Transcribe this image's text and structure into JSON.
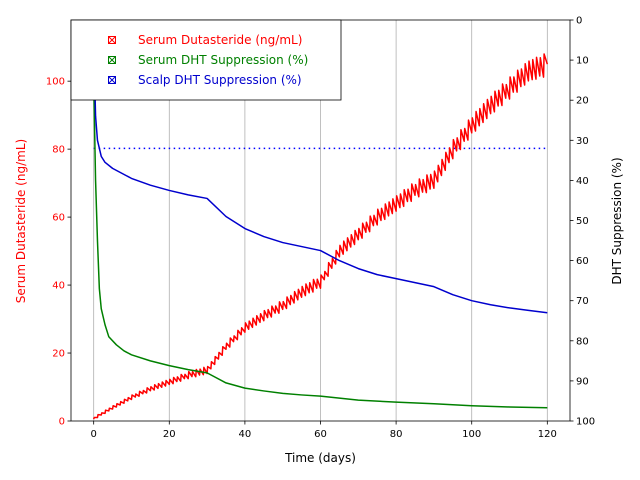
{
  "chart_data": {
    "type": "line",
    "xlabel": "Time (days)",
    "ylabel_left": "Serum Dutasteride (ng/mL)",
    "ylabel_right": "DHT Suppression (%)",
    "xlim": [
      -6,
      126
    ],
    "ylim_left": [
      0,
      118
    ],
    "ylim_right": [
      100,
      0
    ],
    "right_axis_inverted": true,
    "x_grid": true,
    "y_grid": false,
    "legend_position": "upper-left",
    "x_ticks": [
      {
        "value": 0,
        "label": "0"
      },
      {
        "value": 20,
        "label": "20"
      },
      {
        "value": 40,
        "label": "40"
      },
      {
        "value": 60,
        "label": "60"
      },
      {
        "value": 80,
        "label": "80"
      },
      {
        "value": 100,
        "label": "100"
      },
      {
        "value": 120,
        "label": "120"
      }
    ],
    "left_ticks": [
      {
        "value": 0,
        "label": "0"
      },
      {
        "value": 20,
        "label": "20"
      },
      {
        "value": 40,
        "label": "40"
      },
      {
        "value": 60,
        "label": "60"
      },
      {
        "value": 80,
        "label": "80"
      },
      {
        "value": 100,
        "label": "100"
      }
    ],
    "right_ticks": [
      {
        "value": 0,
        "label": "0"
      },
      {
        "value": 10,
        "label": "10"
      },
      {
        "value": 20,
        "label": "20"
      },
      {
        "value": 30,
        "label": "30"
      },
      {
        "value": 40,
        "label": "40"
      },
      {
        "value": 50,
        "label": "50"
      },
      {
        "value": 60,
        "label": "60"
      },
      {
        "value": 70,
        "label": "70"
      },
      {
        "value": 80,
        "label": "80"
      },
      {
        "value": 90,
        "label": "90"
      },
      {
        "value": 100,
        "label": "100"
      }
    ],
    "threshold": {
      "axis": "right",
      "value": 32,
      "x_range": [
        0,
        120
      ],
      "style": "dotted",
      "color": "#0000ff"
    },
    "series": [
      {
        "name": "Serum Dutasteride (ng/mL)",
        "axis": "left",
        "color": "#ff0000",
        "dosing_interval_days": 1,
        "sawtooth_amplitude": [
          0.8,
          7
        ],
        "x": [
          0,
          5,
          10,
          15,
          20,
          25,
          30,
          35,
          40,
          45,
          50,
          55,
          60,
          65,
          70,
          75,
          80,
          85,
          90,
          95,
          100,
          105,
          110,
          115,
          120
        ],
        "y": [
          0.8,
          4,
          7,
          9.5,
          11.5,
          13.5,
          15,
          22,
          27.5,
          31,
          34,
          38,
          41,
          50,
          55,
          60,
          64,
          68,
          71,
          80,
          87,
          93,
          98,
          103,
          105
        ]
      },
      {
        "name": "Serum DHT Suppression (%)",
        "axis": "right",
        "color": "#008000",
        "x": [
          0,
          0.5,
          1,
          1.5,
          2,
          3,
          4,
          6,
          8,
          10,
          15,
          20,
          25,
          30,
          35,
          40,
          45,
          50,
          55,
          60,
          70,
          80,
          90,
          100,
          110,
          120
        ],
        "y": [
          15,
          40,
          55,
          67,
          72,
          76,
          79,
          81,
          82.5,
          83.5,
          85,
          86.2,
          87.2,
          88,
          90.5,
          91.8,
          92.5,
          93.1,
          93.5,
          93.8,
          94.8,
          95.3,
          95.7,
          96.2,
          96.5,
          96.7
        ]
      },
      {
        "name": "Scalp DHT Suppression (%)",
        "axis": "right",
        "color": "#0000cd",
        "x": [
          0,
          0.5,
          1,
          2,
          3,
          5,
          10,
          15,
          20,
          25,
          30,
          35,
          40,
          45,
          50,
          55,
          60,
          65,
          70,
          75,
          80,
          85,
          90,
          95,
          100,
          105,
          110,
          115,
          120
        ],
        "y": [
          5,
          24,
          30,
          34,
          35.5,
          37,
          39.5,
          41.2,
          42.5,
          43.6,
          44.5,
          49,
          52,
          54,
          55.5,
          56.5,
          57.5,
          60,
          62,
          63.5,
          64.5,
          65.5,
          66.5,
          68.5,
          70,
          71,
          71.8,
          72.4,
          73
        ]
      }
    ]
  }
}
